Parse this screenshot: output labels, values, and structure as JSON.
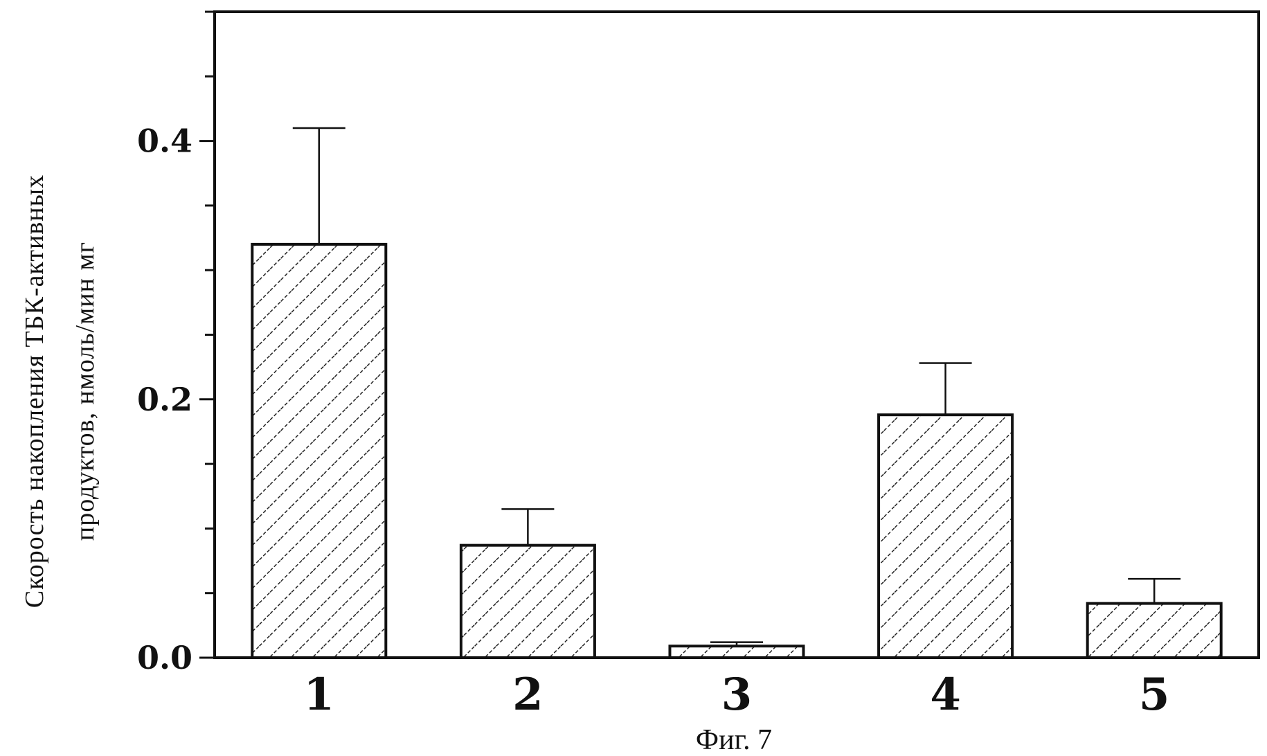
{
  "chart_data": {
    "type": "bar",
    "categories": [
      "1",
      "2",
      "3",
      "4",
      "5"
    ],
    "values": [
      0.32,
      0.087,
      0.009,
      0.188,
      0.042
    ],
    "errors": [
      0.09,
      0.028,
      0.003,
      0.04,
      0.019
    ],
    "ylim": [
      0,
      0.5
    ],
    "yticks": [
      0.0,
      0.2,
      0.4
    ],
    "ytick_labels": [
      "0.0",
      "0.2",
      "0.4"
    ],
    "minor_step": 0.05,
    "ylabel_line1": "Скорость накопления ТБК-активных",
    "ylabel_line2": "продуктов, нмоль/мин мг",
    "caption": "Фиг. 7",
    "bar_fill": "hatched",
    "bar_color": "#ffffff",
    "hatch_color": "#222222",
    "grid": false
  }
}
